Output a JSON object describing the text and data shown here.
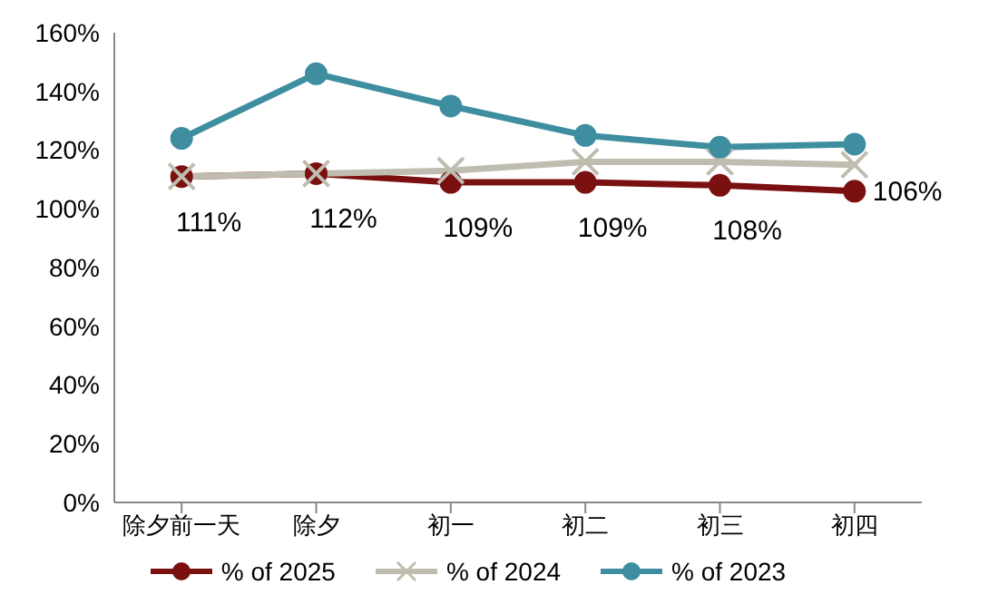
{
  "chart_data": {
    "type": "line",
    "categories": [
      "除夕前一天",
      "除夕",
      "初一",
      "初二",
      "初三",
      "初四"
    ],
    "series": [
      {
        "name": "% of 2025",
        "color": "#7b1010",
        "marker": "circle",
        "values": [
          111,
          112,
          109,
          109,
          108,
          106
        ],
        "value_labels": [
          "111%",
          "112%",
          "109%",
          "109%",
          "108%",
          "106%"
        ]
      },
      {
        "name": "% of 2024",
        "color": "#bfbdaf",
        "marker": "cross",
        "values": [
          111,
          112,
          113,
          116,
          116,
          115
        ]
      },
      {
        "name": "% of 2023",
        "color": "#3e8ea0",
        "marker": "circle",
        "values": [
          124,
          146,
          135,
          125,
          121,
          122
        ]
      }
    ],
    "ylim": [
      0,
      160
    ],
    "yticks": [
      {
        "value": 0,
        "label": "0%"
      },
      {
        "value": 20,
        "label": "20%"
      },
      {
        "value": 40,
        "label": "40%"
      },
      {
        "value": 60,
        "label": "60%"
      },
      {
        "value": 80,
        "label": "80%"
      },
      {
        "value": 100,
        "label": "100%"
      },
      {
        "value": 120,
        "label": "120%"
      },
      {
        "value": 140,
        "label": "140%"
      },
      {
        "value": 160,
        "label": "160%"
      }
    ],
    "grid": false,
    "legend": "bottom"
  }
}
